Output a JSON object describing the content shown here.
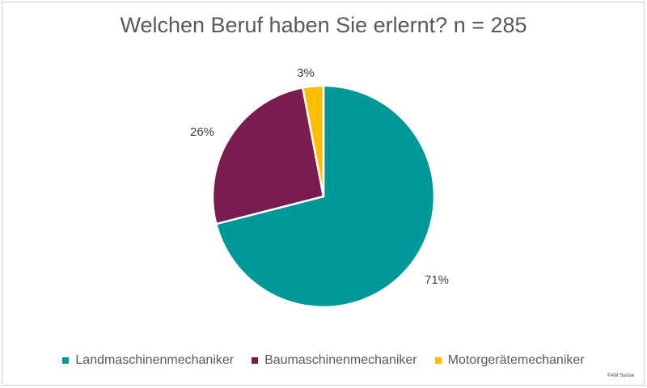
{
  "chart_data": {
    "type": "pie",
    "title": "Welchen Beruf haben Sie erlernt? n = 285",
    "categories": [
      "Landmaschinenmechaniker",
      "Baumaschinenmechaniker",
      "Motorgerätemechaniker"
    ],
    "values": [
      71,
      26,
      3
    ],
    "data_labels": [
      "71%",
      "26%",
      "3%"
    ],
    "colors": [
      "#00999a",
      "#7b1c51",
      "#ffbe00"
    ],
    "legend_position": "bottom"
  },
  "footer": {
    "copyright": "©AM Suisse"
  }
}
